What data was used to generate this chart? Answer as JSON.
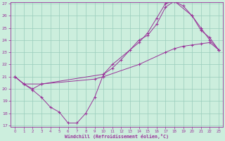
{
  "xlabel": "Windchill (Refroidissement éolien,°C)",
  "bg_color": "#cceedd",
  "grid_color": "#99ccbb",
  "line_color": "#993399",
  "xlim": [
    -0.5,
    23.5
  ],
  "ylim": [
    17,
    27
  ],
  "yticks": [
    17,
    18,
    19,
    20,
    21,
    22,
    23,
    24,
    25,
    26,
    27
  ],
  "xticks": [
    0,
    1,
    2,
    3,
    4,
    5,
    6,
    7,
    8,
    9,
    10,
    11,
    12,
    13,
    14,
    15,
    16,
    17,
    18,
    19,
    20,
    21,
    22,
    23
  ],
  "lines": [
    {
      "x": [
        0,
        1,
        3,
        9,
        10,
        14,
        17,
        18,
        19,
        20,
        21,
        22,
        23
      ],
      "y": [
        21.0,
        20.4,
        20.4,
        20.8,
        21.0,
        22.0,
        23.0,
        23.3,
        23.5,
        23.6,
        23.7,
        23.8,
        23.2
      ]
    },
    {
      "x": [
        0,
        1,
        2,
        3,
        4,
        5,
        6,
        7,
        8,
        9,
        10,
        11,
        12,
        13,
        14,
        15,
        16,
        17,
        18,
        19,
        20,
        21,
        22,
        23
      ],
      "y": [
        21.0,
        20.4,
        19.9,
        19.3,
        18.5,
        18.1,
        17.2,
        17.2,
        18.0,
        19.3,
        21.2,
        21.7,
        22.4,
        23.2,
        24.0,
        24.4,
        25.3,
        26.7,
        27.2,
        26.8,
        26.0,
        24.8,
        24.2,
        23.2
      ]
    },
    {
      "x": [
        0,
        1,
        2,
        3,
        10,
        11,
        14,
        15,
        16,
        17,
        18,
        20,
        21,
        22,
        23
      ],
      "y": [
        21.0,
        20.4,
        20.0,
        20.4,
        21.2,
        22.0,
        23.8,
        24.6,
        25.8,
        27.0,
        27.2,
        26.0,
        25.0,
        24.0,
        23.2
      ]
    }
  ]
}
